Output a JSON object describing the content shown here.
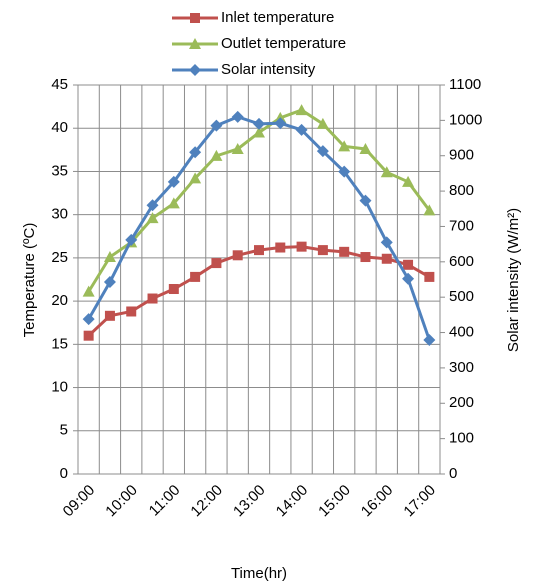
{
  "chart_data": {
    "type": "line",
    "x_label": "Time(hr)",
    "y_label": "Temperature (ºC)",
    "y2_label": "Solar intensity (W/m²)",
    "categories": [
      "09:00",
      null,
      "10:00",
      null,
      "11:00",
      null,
      "12:00",
      null,
      "13:00",
      null,
      "14:00",
      null,
      "15:00",
      null,
      "16:00",
      null,
      "17:00"
    ],
    "series": [
      {
        "name": "Inlet temperature",
        "color": "#c0504d",
        "marker": "square",
        "values": [
          16.0,
          18.3,
          18.8,
          20.3,
          21.4,
          22.8,
          24.4,
          25.3,
          25.9,
          26.2,
          26.3,
          25.9,
          25.7,
          25.1,
          24.9,
          24.2,
          22.8
        ]
      },
      {
        "name": "Outlet temperature",
        "color": "#9bbb59",
        "marker": "triangle",
        "values": [
          21.1,
          25.1,
          26.8,
          29.6,
          31.3,
          34.2,
          36.8,
          37.6,
          39.5,
          41.2,
          42.1,
          40.5,
          37.9,
          37.6,
          34.9,
          33.8,
          30.5
        ]
      },
      {
        "name": "Solar intensity",
        "color": "#4f81bd",
        "marker": "diamond",
        "axis": "y2",
        "values": [
          438,
          543,
          662,
          760,
          826,
          910,
          985,
          1010,
          990,
          992,
          973,
          913,
          855,
          773,
          655,
          552,
          379
        ]
      }
    ],
    "ylim": [
      0,
      45
    ],
    "yticks": [
      0,
      5,
      10,
      15,
      20,
      25,
      30,
      35,
      40,
      45
    ],
    "y2lim": [
      0,
      1100
    ],
    "y2ticks": [
      0,
      100,
      200,
      300,
      400,
      500,
      600,
      700,
      800,
      900,
      1000,
      1100
    ],
    "grid": true,
    "legend": "top"
  }
}
